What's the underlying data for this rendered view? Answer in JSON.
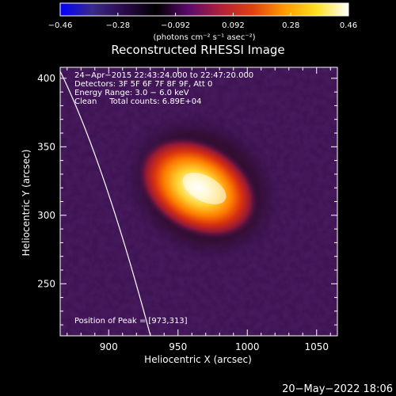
{
  "colorbar": {
    "ticks": [
      "−0.46",
      "−0.28",
      "−0.092",
      "0.092",
      "0.28",
      "0.46"
    ],
    "unit_label": "(photons cm⁻² s⁻¹ asec⁻²)",
    "stops": [
      "#0000ff",
      "#3a2a8a",
      "#2a0a4a",
      "#000000",
      "#5a0a6a",
      "#b0203a",
      "#e04010",
      "#ff9a00",
      "#ffe020",
      "#ffffff"
    ]
  },
  "image": {
    "title": "Reconstructed RHESSI Image",
    "info_lines": [
      "24−Apr−2015 22:43:24.000 to 22:47:20.000",
      "Detectors: 3F 5F 6F 7F 8F 9F, Att 0",
      "Energy Range: 3.0 − 6.0 keV",
      "Clean     Total counts: 6.89E+04"
    ],
    "peak_label": "Position of Peak = [973,313]",
    "peak_position_arcsec": [
      973,
      313
    ],
    "xlabel": "Heliocentric X (arcsec)",
    "ylabel": "Heliocentric Y (arcsec)",
    "xlim": [
      865,
      1065
    ],
    "ylim": [
      212,
      408
    ],
    "xticks": [
      900,
      950,
      1000,
      1050
    ],
    "yticks": [
      250,
      300,
      350,
      400
    ],
    "background_color": "#3a1150",
    "limb_color": "#ffffff"
  },
  "timestamp": "20−May−2022 18:06"
}
